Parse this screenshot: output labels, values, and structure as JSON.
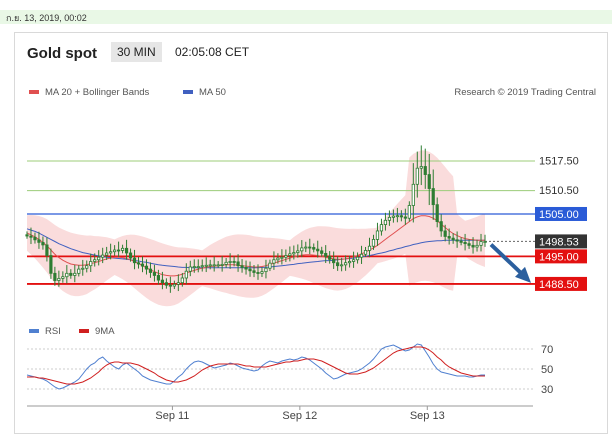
{
  "header": {
    "datetime": "ก.ย. 13, 2019, 00:02"
  },
  "chart_header": {
    "title": "Gold spot",
    "timeframe": "30 MIN",
    "time": "02:05:08 CET"
  },
  "legend": {
    "ma20_label": "MA 20 + Bollinger Bands",
    "ma50_label": "MA 50",
    "credit": "Research © 2019 Trading Central",
    "rsi_label": "RSI",
    "rsi_ma_label": "9MA"
  },
  "colors": {
    "ma20": "#e05050",
    "band": "#fadcdc",
    "ma50": "#4060c0",
    "resistance_green": "#9ccc7a",
    "pivot": "#2a5bd7",
    "support": "#e31010",
    "candle": "#2e7d32",
    "rsi": "#5080d0",
    "rsi_ma": "#d02020"
  },
  "chart_data": [
    {
      "type": "line",
      "title": "",
      "x_ticks": [
        "Sep 11",
        "Sep 12",
        "Sep 13"
      ],
      "y_range": [
        1484,
        1530
      ],
      "levels": [
        {
          "value": 1517.5,
          "label": "1517.50",
          "kind": "resistance"
        },
        {
          "value": 1510.5,
          "label": "1510.50",
          "kind": "resistance"
        },
        {
          "value": 1505.0,
          "label": "1505.00",
          "kind": "pivot"
        },
        {
          "value": 1498.53,
          "label": "1498.53",
          "kind": "last_price"
        },
        {
          "value": 1495.0,
          "label": "1495.00",
          "kind": "support"
        },
        {
          "value": 1488.5,
          "label": "1488.50",
          "kind": "support"
        }
      ],
      "forecast_arrow": {
        "from": 1498.5,
        "to": 1488.5
      },
      "price_close": [
        1499.8,
        1499.5,
        1498.9,
        1498.3,
        1497.7,
        1495.2,
        1491.0,
        1489.3,
        1489.8,
        1490.2,
        1491.0,
        1490.5,
        1491.0,
        1492.0,
        1492.2,
        1492.8,
        1493.8,
        1494.2,
        1494.8,
        1495.3,
        1495.8,
        1496.1,
        1496.5,
        1496.4,
        1496.9,
        1495.8,
        1494.6,
        1493.5,
        1493.2,
        1492.7,
        1492.0,
        1491.2,
        1490.5,
        1489.4,
        1488.8,
        1488.2,
        1488.0,
        1488.4,
        1488.8,
        1489.9,
        1491.5,
        1492.5,
        1492.6,
        1492.6,
        1492.8,
        1492.9,
        1493.0,
        1493.0,
        1493.0,
        1493.1,
        1493.6,
        1493.8,
        1493.7,
        1492.8,
        1492.4,
        1492.0,
        1491.6,
        1491.2,
        1491.0,
        1491.4,
        1492.2,
        1493.4,
        1494.2,
        1494.6,
        1494.8,
        1495.2,
        1495.6,
        1495.9,
        1496.3,
        1497.0,
        1497.2,
        1497.1,
        1496.7,
        1496.3,
        1495.7,
        1495.0,
        1494.3,
        1493.5,
        1492.8,
        1493.0,
        1493.5,
        1493.8,
        1494.2,
        1494.8,
        1495.5,
        1496.4,
        1497.4,
        1499.0,
        1501.0,
        1502.5,
        1503.5,
        1504.2,
        1504.5,
        1504.6,
        1504.3,
        1504.0,
        1507.0,
        1512.0,
        1515.8,
        1516.2,
        1514.3,
        1511.0,
        1507.2,
        1503.2,
        1501.0,
        1499.7,
        1499.3,
        1498.9,
        1498.6,
        1498.3,
        1498.0,
        1497.6,
        1497.2,
        1497.6,
        1498.5,
        1498.5
      ],
      "ma20": [
        1500.5,
        1500.1,
        1499.6,
        1499.0,
        1498.3,
        1497.5,
        1496.5,
        1495.5,
        1494.7,
        1494.1,
        1493.6,
        1493.2,
        1493.0,
        1492.9,
        1492.9,
        1493.0,
        1493.3,
        1493.5,
        1493.8,
        1494.1,
        1494.4,
        1494.6,
        1494.8,
        1494.8,
        1494.7,
        1494.5,
        1494.2,
        1493.8,
        1493.3,
        1492.8,
        1492.3,
        1491.8,
        1491.4,
        1491.0,
        1490.7,
        1490.5,
        1490.4,
        1490.4,
        1490.5,
        1490.8,
        1491.1,
        1491.4,
        1491.7,
        1492.0,
        1492.2,
        1492.4,
        1492.6,
        1492.7,
        1492.8,
        1492.9,
        1493.0,
        1493.0,
        1493.0,
        1492.9,
        1492.8,
        1492.7,
        1492.6,
        1492.5,
        1492.5,
        1492.6,
        1492.8,
        1493.1,
        1493.4,
        1493.7,
        1494.0,
        1494.3,
        1494.6,
        1494.9,
        1495.1,
        1495.3,
        1495.4,
        1495.4,
        1495.3,
        1495.2,
        1495.0,
        1494.8,
        1494.6,
        1494.4,
        1494.3,
        1494.3,
        1494.4,
        1494.6,
        1494.9,
        1495.2,
        1495.6,
        1496.0,
        1496.5,
        1497.0,
        1497.6,
        1498.3,
        1499.0,
        1499.7,
        1500.4,
        1501.1,
        1501.8,
        1502.5,
        1503.2,
        1503.9,
        1504.3,
        1504.6,
        1504.6,
        1504.4,
        1504.0,
        1503.4,
        1502.6,
        1501.8,
        1501.0,
        1500.4,
        1499.9,
        1499.5,
        1499.2,
        1499.0,
        1498.9,
        1498.8,
        1498.8,
        1498.8
      ],
      "ma50": [
        1501.5,
        1501.2,
        1500.9,
        1500.5,
        1500.0,
        1499.5,
        1499.0,
        1498.5,
        1498.0,
        1497.6,
        1497.2,
        1496.8,
        1496.5,
        1496.2,
        1495.9,
        1495.7,
        1495.5,
        1495.3,
        1495.1,
        1494.9,
        1494.8,
        1494.7,
        1494.6,
        1494.5,
        1494.4,
        1494.3,
        1494.2,
        1494.0,
        1493.9,
        1493.7,
        1493.6,
        1493.4,
        1493.2,
        1493.0,
        1492.9,
        1492.8,
        1492.7,
        1492.6,
        1492.5,
        1492.4,
        1492.4,
        1492.3,
        1492.3,
        1492.3,
        1492.3,
        1492.3,
        1492.3,
        1492.3,
        1492.3,
        1492.3,
        1492.3,
        1492.3,
        1492.3,
        1492.3,
        1492.3,
        1492.3,
        1492.3,
        1492.3,
        1492.3,
        1492.4,
        1492.4,
        1492.5,
        1492.6,
        1492.7,
        1492.8,
        1492.9,
        1493.0,
        1493.1,
        1493.3,
        1493.4,
        1493.5,
        1493.6,
        1493.7,
        1493.8,
        1493.9,
        1494.0,
        1494.0,
        1494.1,
        1494.2,
        1494.3,
        1494.4,
        1494.5,
        1494.6,
        1494.7,
        1494.9,
        1495.0,
        1495.2,
        1495.4,
        1495.6,
        1495.8,
        1496.0,
        1496.3,
        1496.5,
        1496.8,
        1497.0,
        1497.3,
        1497.5,
        1497.8,
        1498.0,
        1498.2,
        1498.4,
        1498.5,
        1498.6,
        1498.7,
        1498.7,
        1498.8,
        1498.8,
        1498.8,
        1498.8,
        1498.8,
        1498.8,
        1498.8,
        1498.8,
        1498.8,
        1498.8,
        1498.8
      ]
    },
    {
      "type": "line",
      "title": "",
      "y_ticks": [
        70,
        50,
        30
      ],
      "y_range": [
        20,
        80
      ],
      "series": [
        {
          "name": "RSI",
          "values": [
            44,
            43,
            42,
            41,
            40,
            38,
            35,
            32,
            30,
            31,
            33,
            35,
            37,
            40,
            45,
            50,
            54,
            56,
            60,
            62,
            58,
            55,
            52,
            50,
            54,
            56,
            53,
            50,
            47,
            43,
            41,
            39,
            38,
            37,
            36,
            35,
            35,
            38,
            42,
            45,
            50,
            54,
            57,
            58,
            57,
            55,
            53,
            51,
            52,
            53,
            54,
            56,
            55,
            53,
            51,
            50,
            49,
            48,
            49,
            53,
            56,
            58,
            57,
            56,
            58,
            59,
            60,
            59,
            60,
            62,
            61,
            59,
            56,
            53,
            50,
            46,
            43,
            40,
            41,
            43,
            45,
            46,
            47,
            48,
            50,
            53,
            56,
            60,
            65,
            70,
            72,
            73,
            74,
            72,
            70,
            68,
            69,
            72,
            75,
            74,
            68,
            62,
            55,
            50,
            47,
            46,
            45,
            44,
            43,
            43,
            43,
            42,
            42,
            43,
            44,
            44
          ]
        },
        {
          "name": "9MA",
          "values": [
            42,
            42,
            42,
            41,
            41,
            40,
            39,
            38,
            37,
            36,
            35,
            35,
            35,
            36,
            37,
            39,
            41,
            44,
            47,
            51,
            54,
            56,
            57,
            57,
            56,
            56,
            56,
            55,
            54,
            52,
            50,
            48,
            46,
            43,
            41,
            39,
            38,
            37,
            37,
            38,
            39,
            41,
            43,
            46,
            49,
            51,
            53,
            54,
            55,
            55,
            55,
            55,
            55,
            55,
            54,
            53,
            53,
            52,
            52,
            52,
            52,
            53,
            54,
            55,
            56,
            57,
            57,
            58,
            58,
            59,
            60,
            60,
            60,
            59,
            58,
            56,
            54,
            52,
            50,
            48,
            46,
            45,
            45,
            45,
            46,
            47,
            49,
            51,
            54,
            57,
            60,
            63,
            66,
            68,
            69,
            70,
            71,
            72,
            72,
            72,
            71,
            69,
            66,
            62,
            59,
            55,
            52,
            50,
            48,
            46,
            45,
            44,
            43,
            43,
            43,
            43
          ]
        }
      ]
    }
  ]
}
